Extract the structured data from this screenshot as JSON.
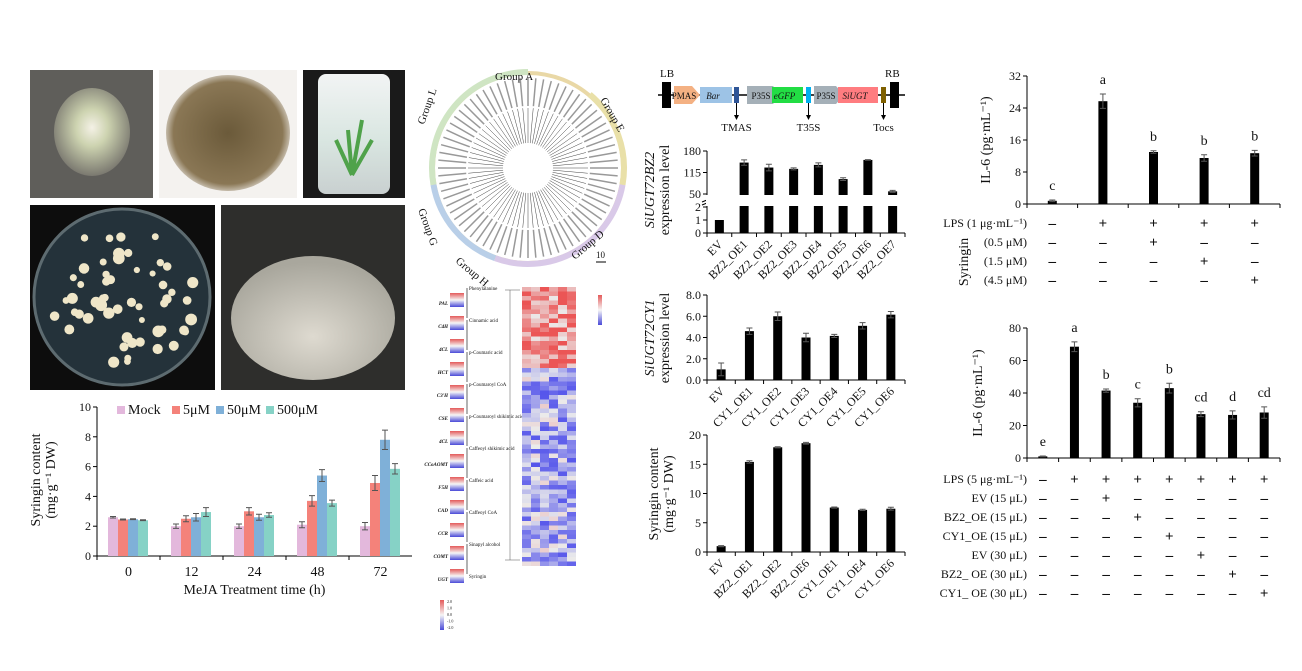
{
  "tree": {
    "groups": [
      "Group A",
      "Group E",
      "Group D",
      "Group H",
      "Group G",
      "Group L"
    ],
    "scale": "10"
  },
  "pathway": {
    "compounds": [
      "Phenylalanine",
      "Cinnamic acid",
      "p-Coumaric acid",
      "p-Coumaroyl CoA",
      "p-Coumaroyl shikimic acid",
      "Caffeoyl shikimic acid",
      "Caffeic acid",
      "Caffeoyl CoA",
      "Sinapyl alcohol",
      "Syringin"
    ],
    "enzymes": [
      "PAL",
      "C4H",
      "4CL",
      "HCT",
      "C3'H",
      "CSE",
      "4CL",
      "CCoAOMT",
      "F5H",
      "CAD",
      "CCR",
      "COMT",
      "UGT"
    ],
    "scale_ticks": [
      "2.0",
      "1.0",
      "0.0",
      "-1.0",
      "-2.0"
    ]
  },
  "vector": {
    "left_border": "LB",
    "right_border": "RB",
    "elements": [
      {
        "label": "PMAS",
        "color": "#f4b183"
      },
      {
        "label": "Bar",
        "color": "#9dc3e6"
      },
      {
        "label": "P35S",
        "color": "#a5b0b8"
      },
      {
        "label": "eGFP",
        "color": "#22dd44"
      },
      {
        "label": "P35S",
        "color": "#a5b0b8"
      },
      {
        "label": "SiUGT",
        "color": "#ff7c80"
      }
    ],
    "terminators": [
      "TMAS",
      "T35S",
      "Tocs"
    ]
  },
  "chart_data": [
    {
      "type": "bar",
      "xlabel": "MeJA Treatment time (h)",
      "ylabel": [
        "Syringin content",
        "(mg·g⁻¹ DW)"
      ],
      "categories": [
        "0",
        "12",
        "24",
        "48",
        "72"
      ],
      "ylim": [
        0,
        10
      ],
      "yticks": [
        "0",
        "2",
        "4",
        "6",
        "8",
        "10"
      ],
      "legend": "top",
      "series": [
        {
          "name": "Mock",
          "color": "#e3b8dc",
          "values": [
            2.6,
            2.0,
            2.0,
            2.1,
            2.0
          ],
          "errors": [
            0.05,
            0.15,
            0.15,
            0.2,
            0.25
          ]
        },
        {
          "name": "5μM",
          "color": "#f4827a",
          "values": [
            2.45,
            2.5,
            3.0,
            3.7,
            4.9
          ],
          "errors": [
            0.03,
            0.2,
            0.25,
            0.35,
            0.5
          ]
        },
        {
          "name": "50μM",
          "color": "#7fb0d8",
          "values": [
            2.47,
            2.6,
            2.6,
            5.4,
            7.8
          ],
          "errors": [
            0.03,
            0.25,
            0.2,
            0.4,
            0.65
          ]
        },
        {
          "name": "500μM",
          "color": "#86d2c6",
          "values": [
            2.4,
            2.95,
            2.75,
            3.55,
            5.85
          ],
          "errors": [
            0.03,
            0.3,
            0.15,
            0.2,
            0.35
          ]
        }
      ]
    },
    {
      "type": "bar",
      "ylabel": [
        "SiUGT72BZ2",
        "expression level"
      ],
      "categories": [
        "EV",
        "BZ2_OE1",
        "BZ2_OE2",
        "BZ2_OE3",
        "BZ2_OE4",
        "BZ2_OE5",
        "BZ2_OE6",
        "BZ2_OE7"
      ],
      "values": [
        1,
        145,
        130,
        126,
        138,
        95,
        153,
        58
      ],
      "errors": [
        0,
        8,
        10,
        3,
        6,
        4,
        1,
        3
      ],
      "yticks": [
        "0",
        "1",
        "2",
        "50",
        "115",
        "180"
      ],
      "axis_break": [
        2,
        50
      ]
    },
    {
      "type": "bar",
      "ylabel": [
        "SiUGT72CY1",
        "expression level"
      ],
      "categories": [
        "EV",
        "CY1_OE1",
        "CY1_OE2",
        "CY1_OE3",
        "CY1_OE4",
        "CY1_OE5",
        "CY1_OE6"
      ],
      "values": [
        1.0,
        4.6,
        6.0,
        4.0,
        4.15,
        5.1,
        6.15
      ],
      "errors": [
        0.6,
        0.3,
        0.4,
        0.4,
        0.15,
        0.3,
        0.3
      ],
      "ylim": [
        0,
        8
      ],
      "yticks": [
        "0.0",
        "2.0",
        "4.0",
        "6.0",
        "8.0"
      ]
    },
    {
      "type": "bar",
      "ylabel": [
        "Syringin content",
        "(mg·g⁻¹ DW)"
      ],
      "categories": [
        "EV",
        "BZ2_OE1",
        "BZ2_OE2",
        "BZ2_OE6",
        "CY1_OE1",
        "CY1_OE4",
        "CY1_OE6"
      ],
      "values": [
        1.0,
        15.4,
        17.9,
        18.6,
        7.6,
        7.2,
        7.4
      ],
      "errors": [
        0.1,
        0.2,
        0.1,
        0.15,
        0.1,
        0.1,
        0.25
      ],
      "ylim": [
        0,
        20
      ],
      "yticks": [
        "0",
        "5",
        "10",
        "15",
        "20"
      ]
    },
    {
      "type": "bar",
      "ylabel": [
        "IL-6 (pg·mL⁻¹)"
      ],
      "values": [
        0.8,
        25.7,
        13.0,
        11.5,
        12.7
      ],
      "errors": [
        0.2,
        1.8,
        0.3,
        0.8,
        0.7
      ],
      "letters": [
        "c",
        "a",
        "b",
        "b",
        "b"
      ],
      "ylim": [
        0,
        32
      ],
      "yticks": [
        "0",
        "8",
        "16",
        "24",
        "32"
      ],
      "group_label": "Syringin",
      "treatments": [
        {
          "label": "LPS (1 μg·mL⁻¹)",
          "marks": [
            "–",
            "+",
            "+",
            "+",
            "+"
          ]
        },
        {
          "label": "(0.5 μM)",
          "marks": [
            "–",
            "–",
            "+",
            "–",
            "–"
          ]
        },
        {
          "label": "(1.5 μM)",
          "marks": [
            "–",
            "–",
            "–",
            "+",
            "–"
          ]
        },
        {
          "label": "(4.5 μM)",
          "marks": [
            "–",
            "–",
            "–",
            "–",
            "+"
          ]
        }
      ]
    },
    {
      "type": "bar",
      "ylabel": [
        "IL-6 (pg·mL⁻¹)"
      ],
      "values": [
        1.0,
        68.5,
        41.5,
        34.0,
        43.0,
        27.0,
        26.5,
        28.0
      ],
      "errors": [
        0.2,
        3,
        1,
        2.5,
        3,
        1.5,
        2.5,
        3.5
      ],
      "letters": [
        "e",
        "a",
        "b",
        "c",
        "b",
        "cd",
        "d",
        "cd"
      ],
      "ylim": [
        0,
        80
      ],
      "yticks": [
        "0",
        "20",
        "40",
        "60",
        "80"
      ],
      "treatments": [
        {
          "label": "LPS (5 μg·mL⁻¹)",
          "marks": [
            "–",
            "+",
            "+",
            "+",
            "+",
            "+",
            "+",
            "+"
          ]
        },
        {
          "label": "EV (15 μL)",
          "marks": [
            "–",
            "–",
            "+",
            "–",
            "–",
            "–",
            "–",
            "–"
          ]
        },
        {
          "label": "BZ2_OE (15 μL)",
          "marks": [
            "–",
            "–",
            "–",
            "+",
            "–",
            "–",
            "–",
            "–"
          ]
        },
        {
          "label": "CY1_OE (15 μL)",
          "marks": [
            "–",
            "–",
            "–",
            "–",
            "+",
            "–",
            "–",
            "–"
          ]
        },
        {
          "label": "EV (30 μL)",
          "marks": [
            "–",
            "–",
            "–",
            "–",
            "–",
            "+",
            "–",
            "–"
          ]
        },
        {
          "label": "BZ2_ OE (30 μL)",
          "marks": [
            "–",
            "–",
            "–",
            "–",
            "–",
            "–",
            "+",
            "–"
          ]
        },
        {
          "label": "CY1_ OE (30 μL)",
          "marks": [
            "–",
            "–",
            "–",
            "–",
            "–",
            "–",
            "–",
            "+"
          ]
        }
      ]
    }
  ]
}
